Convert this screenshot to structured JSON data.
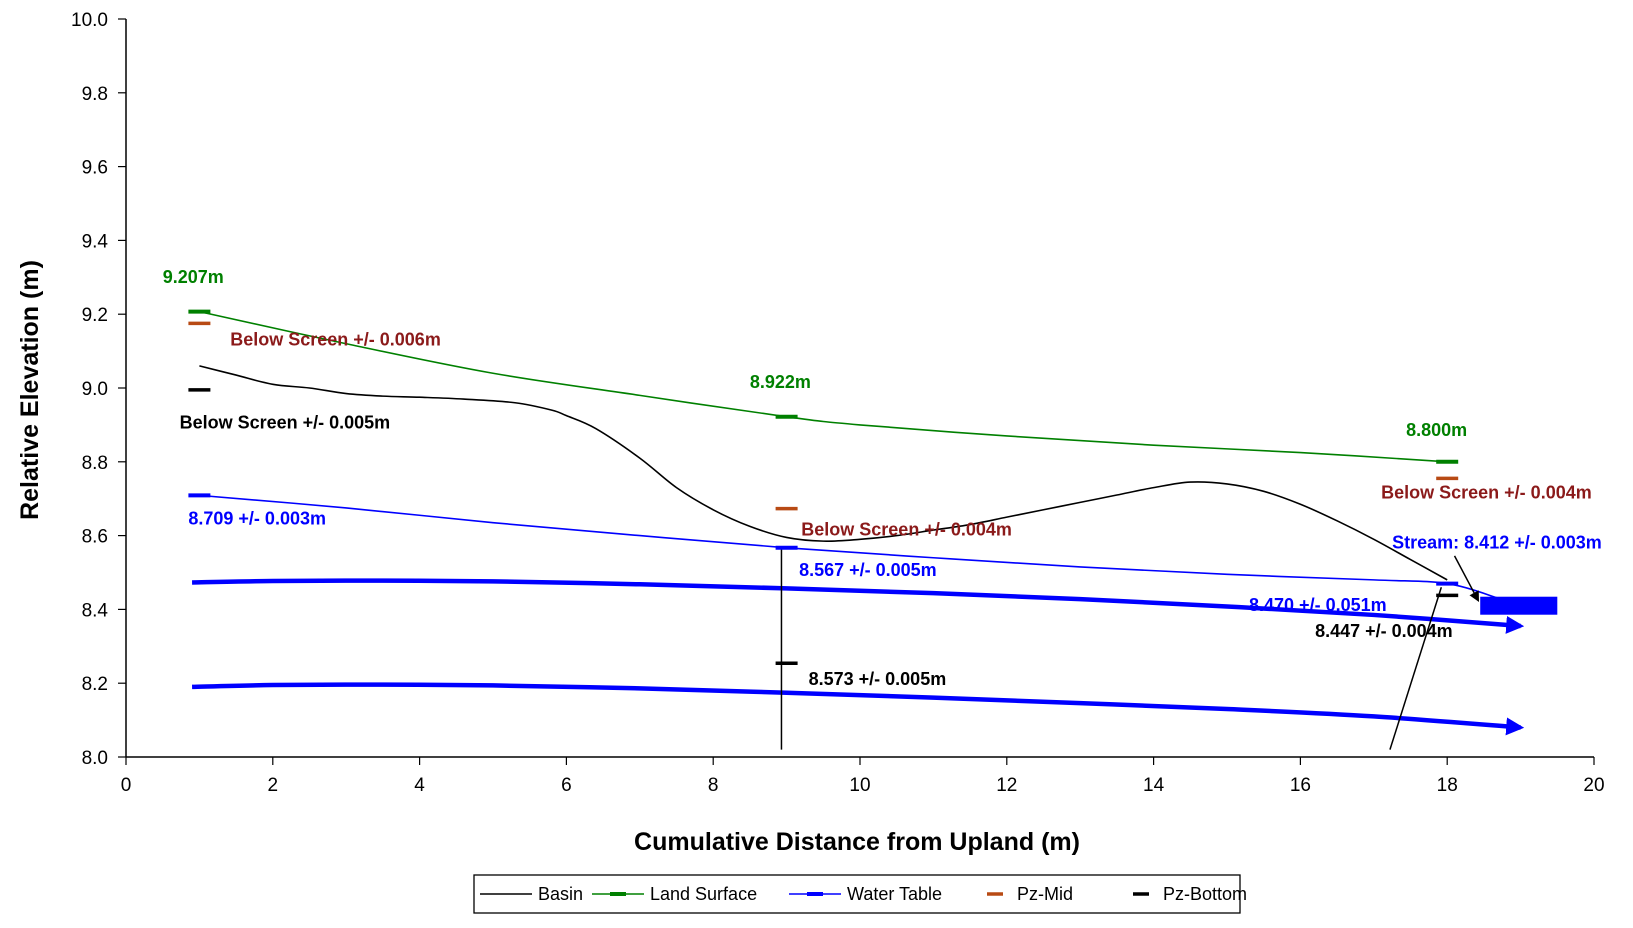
{
  "chart_data": {
    "type": "line",
    "xlabel": "Cumulative Distance from Upland (m)",
    "ylabel": "Relative Elevation (m)",
    "xlim": [
      0,
      20
    ],
    "ylim": [
      8.0,
      10.0
    ],
    "x_ticks": [
      "0",
      "2",
      "4",
      "6",
      "8",
      "10",
      "12",
      "14",
      "16",
      "18",
      "20"
    ],
    "y_ticks": [
      "8.0",
      "8.2",
      "8.4",
      "8.6",
      "8.8",
      "9.0",
      "9.2",
      "9.4",
      "9.6",
      "9.8",
      "10.0"
    ],
    "grid": false,
    "legend": {
      "position": "bottom",
      "entries": [
        {
          "name": "Basin",
          "color": "#000000",
          "style": "line"
        },
        {
          "name": "Land Surface",
          "color": "#008000",
          "style": "line-marker"
        },
        {
          "name": "Water Table",
          "color": "#0000ff",
          "style": "line-marker"
        },
        {
          "name": "Pz-Mid",
          "color": "#b84a14",
          "style": "marker"
        },
        {
          "name": "Pz-Bottom",
          "color": "#000000",
          "style": "marker"
        }
      ]
    },
    "series": [
      {
        "name": "Basin",
        "color": "#000000",
        "x": [
          1.0,
          1.5,
          2.0,
          2.5,
          3.0,
          3.5,
          4.0,
          4.6,
          5.3,
          5.8,
          6.0,
          6.4,
          7.0,
          7.5,
          8.0,
          8.5,
          9.0,
          9.5,
          10.0,
          10.5,
          11.0,
          11.5,
          12.0,
          12.5,
          13.0,
          13.5,
          14.0,
          14.5,
          15.0,
          15.5,
          16.0,
          16.5,
          17.0,
          17.5,
          18.0
        ],
        "y": [
          9.06,
          9.035,
          9.01,
          9.0,
          8.985,
          8.978,
          8.975,
          8.97,
          8.96,
          8.94,
          8.925,
          8.89,
          8.81,
          8.73,
          8.67,
          8.625,
          8.595,
          8.585,
          8.59,
          8.6,
          8.615,
          8.63,
          8.65,
          8.67,
          8.69,
          8.71,
          8.73,
          8.745,
          8.74,
          8.72,
          8.685,
          8.64,
          8.59,
          8.535,
          8.48
        ]
      },
      {
        "name": "Land Surface",
        "color": "#008000",
        "x": [
          1.0,
          3.0,
          5.0,
          7.0,
          9.0,
          10.0,
          12.0,
          14.0,
          16.0,
          18.0
        ],
        "y": [
          9.207,
          9.12,
          9.04,
          8.98,
          8.922,
          8.9,
          8.87,
          8.845,
          8.825,
          8.8
        ]
      },
      {
        "name": "Water Table",
        "color": "#0000ff",
        "x": [
          1.0,
          3.0,
          5.0,
          7.0,
          9.0,
          11.0,
          13.0,
          15.0,
          17.0,
          18.0,
          18.7
        ],
        "y": [
          8.709,
          8.675,
          8.635,
          8.6,
          8.567,
          8.54,
          8.515,
          8.495,
          8.48,
          8.47,
          8.43
        ]
      },
      {
        "name": "Pz-Mid",
        "color": "#b84a14",
        "marker_only": true,
        "x": [
          1.0,
          9.0,
          18.0
        ],
        "y": [
          9.175,
          8.673,
          8.755
        ]
      },
      {
        "name": "Pz-Bottom",
        "color": "#000000",
        "marker_only": true,
        "x": [
          1.0,
          9.0,
          18.0
        ],
        "y": [
          8.995,
          8.254,
          8.438
        ]
      }
    ],
    "flow_arrows": [
      {
        "x": [
          0.9,
          2.0,
          3.5,
          5.0,
          7.0,
          9.0,
          11.0,
          13.0,
          15.0,
          17.0,
          19.0
        ],
        "y": [
          8.473,
          8.477,
          8.478,
          8.476,
          8.468,
          8.457,
          8.444,
          8.428,
          8.408,
          8.385,
          8.355
        ]
      },
      {
        "x": [
          0.9,
          2.0,
          3.5,
          5.0,
          7.0,
          9.0,
          11.0,
          13.0,
          15.0,
          17.0,
          19.0
        ],
        "y": [
          8.19,
          8.195,
          8.196,
          8.194,
          8.186,
          8.174,
          8.161,
          8.146,
          8.13,
          8.11,
          8.08
        ]
      }
    ],
    "screen_lines": [
      {
        "x": [
          8.93,
          8.93
        ],
        "y": [
          8.565,
          8.02
        ]
      },
      {
        "x": [
          17.22,
          17.92
        ],
        "y": [
          8.02,
          8.46
        ]
      }
    ],
    "stream_marker": {
      "x": [
        18.45,
        19.5
      ],
      "y": 8.41,
      "color": "#0000ff"
    },
    "annotations": [
      {
        "text": "9.207m",
        "x": 0.5,
        "y": 9.285,
        "color": "#008000"
      },
      {
        "text": "Below Screen +/- 0.006m",
        "x": 1.42,
        "y": 9.115,
        "color": "#8b1a1a"
      },
      {
        "text": "Below Screen +/- 0.005m",
        "x": 0.73,
        "y": 8.89,
        "color": "#000000"
      },
      {
        "text": "8.709 +/- 0.003m",
        "x": 0.85,
        "y": 8.63,
        "color": "#0000ff"
      },
      {
        "text": "8.922m",
        "x": 8.5,
        "y": 9.0,
        "color": "#008000"
      },
      {
        "text": "Below Screen +/- 0.004m",
        "x": 9.2,
        "y": 8.6,
        "color": "#8b1a1a"
      },
      {
        "text": "8.567 +/- 0.005m",
        "x": 9.17,
        "y": 8.49,
        "color": "#0000ff"
      },
      {
        "text": "8.573 +/- 0.005m",
        "x": 9.3,
        "y": 8.195,
        "color": "#000000"
      },
      {
        "text": "8.800m",
        "x": 17.44,
        "y": 8.87,
        "color": "#008000"
      },
      {
        "text": "Below Screen +/- 0.004m",
        "x": 17.1,
        "y": 8.7,
        "color": "#8b1a1a"
      },
      {
        "text": "Stream: 8.412 +/- 0.003m",
        "x": 17.25,
        "y": 8.565,
        "color": "#0000ff"
      },
      {
        "text": "8.470 +/- 0.051m",
        "x": 15.3,
        "y": 8.395,
        "color": "#0000ff"
      },
      {
        "text": "8.447 +/- 0.004m",
        "x": 16.2,
        "y": 8.325,
        "color": "#000000"
      }
    ]
  }
}
